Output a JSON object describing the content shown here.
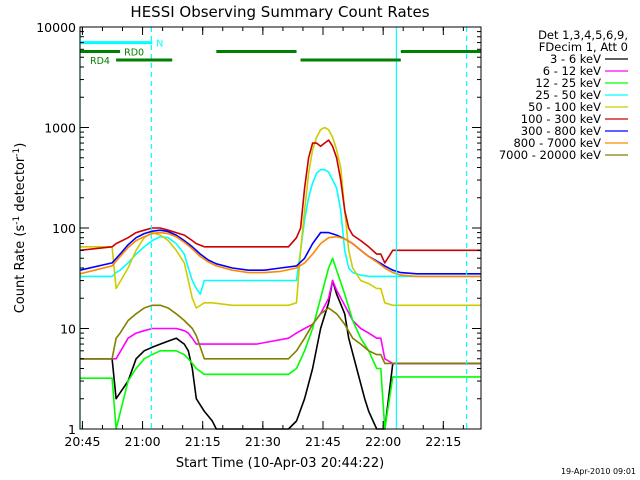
{
  "chart_data": {
    "type": "line",
    "title": "HESSI Observing Summary Count Rates",
    "xlabel": "Start Time (10-Apr-03 20:44:22)",
    "ylabel": "Count Rate (s⁻¹ detector⁻¹)",
    "ylabel_parts": {
      "base": "Count Rate (s",
      "sup1": "-1",
      "mid": " detector",
      "sup2": "-1",
      "end": ")"
    },
    "x_unit": "minutes since 20:44:22",
    "xlim": [
      0,
      100
    ],
    "ylim": [
      1,
      10000
    ],
    "yscale": "log",
    "x_ticks": [
      {
        "label": "20:45",
        "x": 0.6
      },
      {
        "label": "21:00",
        "x": 15.6
      },
      {
        "label": "21:15",
        "x": 30.6
      },
      {
        "label": "21:30",
        "x": 45.6
      },
      {
        "label": "21:45",
        "x": 60.6
      },
      {
        "label": "22:00",
        "x": 75.6
      },
      {
        "label": "22:15",
        "x": 90.6
      }
    ],
    "y_ticks": [
      {
        "label": "1",
        "y": 1
      },
      {
        "label": "10",
        "y": 10
      },
      {
        "label": "100",
        "y": 100
      },
      {
        "label": "1000",
        "y": 1000
      },
      {
        "label": "10000",
        "y": 10000
      }
    ],
    "legend_header": [
      "Det 1,3,4,5,6,9,",
      "FDecim 1, Att 0"
    ],
    "legend_placement": "right",
    "series": [
      {
        "name": "3 - 6 keV",
        "color": "#000000",
        "x": [
          0,
          8,
          9,
          12,
          14,
          16,
          18,
          20,
          22,
          24,
          26,
          27,
          28,
          29,
          31,
          33,
          34,
          38,
          40,
          42,
          44,
          46,
          48,
          50,
          52,
          54,
          56,
          58,
          60,
          62,
          63,
          64,
          66,
          67,
          69,
          71,
          72,
          74,
          75,
          76,
          78,
          80,
          84,
          90,
          96,
          100
        ],
        "y": [
          5,
          5,
          2,
          3,
          5,
          6,
          6.5,
          7,
          7.5,
          8,
          7,
          6,
          4,
          2,
          1.5,
          1.2,
          1,
          1,
          1,
          1,
          1,
          1,
          1,
          1,
          1,
          1.2,
          2,
          4,
          10,
          18,
          30,
          22,
          14,
          8,
          4,
          2,
          1.5,
          1,
          1,
          1,
          4.5,
          4.5,
          4.5,
          4.5,
          4.5,
          4.5
        ]
      },
      {
        "name": "6 - 12 keV",
        "color": "#ff00ff",
        "x": [
          0,
          8,
          9,
          12,
          14,
          16,
          18,
          20,
          22,
          24,
          26,
          27,
          28,
          29,
          31,
          33,
          38,
          40,
          44,
          48,
          52,
          54,
          56,
          58,
          60,
          62,
          63,
          64,
          66,
          68,
          70,
          72,
          74,
          75,
          76,
          78,
          80,
          84,
          90,
          96,
          100
        ],
        "y": [
          5,
          5,
          5,
          8,
          9,
          9.5,
          10,
          10,
          10,
          10,
          9.5,
          9,
          8,
          7,
          7,
          7,
          7,
          7,
          7,
          7.5,
          8,
          9,
          10,
          11,
          14,
          20,
          30,
          24,
          17,
          12,
          10,
          9,
          8,
          8,
          5,
          4.5,
          4.5,
          4.5,
          4.5,
          4.5,
          4.5
        ]
      },
      {
        "name": "12 - 25 keV",
        "color": "#00ff00",
        "x": [
          0,
          8,
          9,
          12,
          14,
          16,
          18,
          20,
          22,
          24,
          26,
          27,
          28,
          29,
          31,
          33,
          38,
          40,
          44,
          48,
          52,
          54,
          56,
          58,
          60,
          62,
          63,
          64,
          66,
          68,
          70,
          72,
          74,
          75,
          76,
          78,
          80,
          84,
          90,
          96,
          100
        ],
        "y": [
          3.2,
          3.2,
          1,
          3,
          4,
          5,
          5.5,
          6,
          6,
          6,
          5.5,
          5,
          4.5,
          4,
          3.5,
          3.5,
          3.5,
          3.5,
          3.5,
          3.5,
          3.5,
          4,
          6,
          10,
          20,
          40,
          50,
          38,
          22,
          12,
          8,
          6,
          4,
          4,
          1,
          3.3,
          3.3,
          3.3,
          3.3,
          3.3,
          3.3
        ]
      },
      {
        "name": "25 - 50 keV",
        "color": "#00ffff",
        "x": [
          0,
          8,
          9,
          10,
          12,
          14,
          16,
          18,
          20,
          22,
          24,
          26,
          27,
          28,
          29,
          30,
          31,
          33,
          38,
          44,
          48,
          52,
          54,
          55,
          56,
          57,
          58,
          59,
          60,
          61,
          62,
          63,
          64,
          65,
          66,
          67,
          68,
          70,
          72,
          74,
          75,
          76,
          78,
          80,
          84,
          90,
          96,
          100
        ],
        "y": [
          33,
          33,
          36,
          38,
          45,
          55,
          65,
          75,
          82,
          80,
          70,
          55,
          40,
          30,
          25,
          22,
          30,
          30,
          30,
          30,
          30,
          30,
          30,
          60,
          120,
          200,
          280,
          350,
          380,
          380,
          360,
          300,
          250,
          150,
          60,
          40,
          36,
          34,
          33,
          33,
          33,
          33,
          33,
          33,
          33,
          33,
          33,
          33
        ]
      },
      {
        "name": "50 - 100 keV",
        "color": "#cccc00",
        "x": [
          0,
          8,
          9,
          12,
          14,
          16,
          18,
          20,
          22,
          24,
          26,
          27,
          28,
          29,
          31,
          33,
          38,
          44,
          48,
          52,
          54,
          55,
          56,
          57,
          58,
          59,
          60,
          61,
          62,
          63,
          64,
          65,
          66,
          67,
          68,
          70,
          72,
          74,
          75,
          76,
          78,
          80,
          84,
          90,
          96,
          100
        ],
        "y": [
          65,
          65,
          25,
          40,
          60,
          80,
          90,
          85,
          75,
          60,
          45,
          30,
          20,
          16,
          18,
          18,
          17,
          17,
          17,
          17,
          18,
          60,
          150,
          350,
          600,
          800,
          950,
          1000,
          950,
          800,
          600,
          400,
          150,
          60,
          40,
          30,
          28,
          25,
          25,
          18,
          17,
          17,
          17,
          17,
          17,
          17
        ]
      },
      {
        "name": "100 - 300 keV",
        "color": "#cc0000",
        "x": [
          0,
          8,
          9,
          12,
          14,
          16,
          18,
          20,
          22,
          24,
          26,
          28,
          29,
          31,
          33,
          38,
          44,
          48,
          52,
          54,
          55,
          56,
          57,
          58,
          59,
          60,
          61,
          62,
          63,
          64,
          65,
          66,
          67,
          68,
          70,
          72,
          74,
          75,
          76,
          78,
          80,
          84,
          90,
          96,
          100
        ],
        "y": [
          60,
          65,
          70,
          80,
          90,
          95,
          100,
          100,
          95,
          90,
          85,
          75,
          70,
          65,
          65,
          65,
          65,
          65,
          65,
          80,
          100,
          250,
          500,
          700,
          700,
          650,
          700,
          750,
          650,
          500,
          300,
          150,
          100,
          85,
          75,
          65,
          55,
          55,
          45,
          60,
          60,
          60,
          60,
          60,
          60
        ]
      },
      {
        "name": "300 - 800 keV",
        "color": "#0000ff",
        "x": [
          0,
          8,
          10,
          12,
          14,
          16,
          18,
          20,
          22,
          24,
          26,
          28,
          30,
          32,
          34,
          38,
          42,
          46,
          50,
          54,
          56,
          58,
          60,
          62,
          64,
          66,
          68,
          70,
          72,
          74,
          76,
          78,
          80,
          84,
          88,
          92,
          96,
          100
        ],
        "y": [
          38,
          45,
          55,
          68,
          80,
          88,
          93,
          95,
          92,
          85,
          75,
          65,
          55,
          48,
          44,
          40,
          38,
          38,
          40,
          42,
          50,
          70,
          90,
          90,
          85,
          78,
          70,
          60,
          52,
          47,
          42,
          38,
          36,
          35,
          35,
          35,
          35,
          35
        ]
      },
      {
        "name": "800 - 7000 keV",
        "color": "#ff8800",
        "x": [
          0,
          8,
          10,
          12,
          14,
          16,
          18,
          20,
          22,
          24,
          26,
          28,
          30,
          32,
          34,
          38,
          42,
          46,
          50,
          54,
          56,
          58,
          60,
          62,
          64,
          66,
          68,
          70,
          72,
          74,
          76,
          78,
          80,
          84,
          88,
          92,
          96,
          100
        ],
        "y": [
          35,
          42,
          52,
          64,
          75,
          82,
          88,
          90,
          88,
          82,
          72,
          62,
          52,
          46,
          42,
          38,
          36,
          36,
          37,
          40,
          45,
          55,
          70,
          80,
          82,
          78,
          70,
          60,
          52,
          46,
          40,
          36,
          34,
          33,
          33,
          33,
          33,
          33
        ]
      },
      {
        "name": "7000 - 20000 keV",
        "color": "#808000",
        "x": [
          0,
          8,
          9,
          10,
          12,
          14,
          16,
          18,
          20,
          22,
          24,
          26,
          28,
          29,
          31,
          33,
          38,
          44,
          48,
          52,
          54,
          56,
          58,
          60,
          62,
          64,
          66,
          68,
          70,
          72,
          74,
          75,
          76,
          78,
          80,
          84,
          90,
          96,
          100
        ],
        "y": [
          5,
          5,
          8,
          9,
          12,
          14,
          16,
          17,
          17,
          16,
          14,
          12,
          10,
          8.5,
          5,
          5,
          5,
          5,
          5,
          5,
          6,
          8,
          11,
          14,
          16,
          14,
          11,
          8,
          7,
          6,
          5.5,
          5.5,
          4.5,
          4.5,
          4.5,
          4.5,
          4.5,
          4.5,
          4.5
        ]
      }
    ],
    "vertical_markers": [
      {
        "x": 0,
        "style": "solid",
        "color": "#00ffff"
      },
      {
        "x": 17.8,
        "style": "dashed",
        "color": "#00ffff"
      },
      {
        "x": 78.9,
        "style": "solid",
        "color": "#00ffff"
      },
      {
        "x": 96.4,
        "style": "dashed",
        "color": "#00ffff"
      }
    ],
    "flag_bars": [
      {
        "label": "N",
        "color": "#00ffff",
        "y": 7000,
        "segments": [
          [
            0,
            18
          ]
        ],
        "label_x": 19
      },
      {
        "label": "RD0",
        "color": "#008000",
        "y": 5700,
        "segments": [
          [
            0,
            10
          ],
          [
            34,
            54
          ],
          [
            80,
            100
          ]
        ],
        "label_x": 11
      },
      {
        "label": "RD4",
        "color": "#008000",
        "y": 4700,
        "segments": [
          [
            9,
            23
          ],
          [
            55,
            80
          ]
        ],
        "label_x": 2.5
      }
    ]
  },
  "footer": {
    "timestamp": "19-Apr-2010 09:01"
  }
}
